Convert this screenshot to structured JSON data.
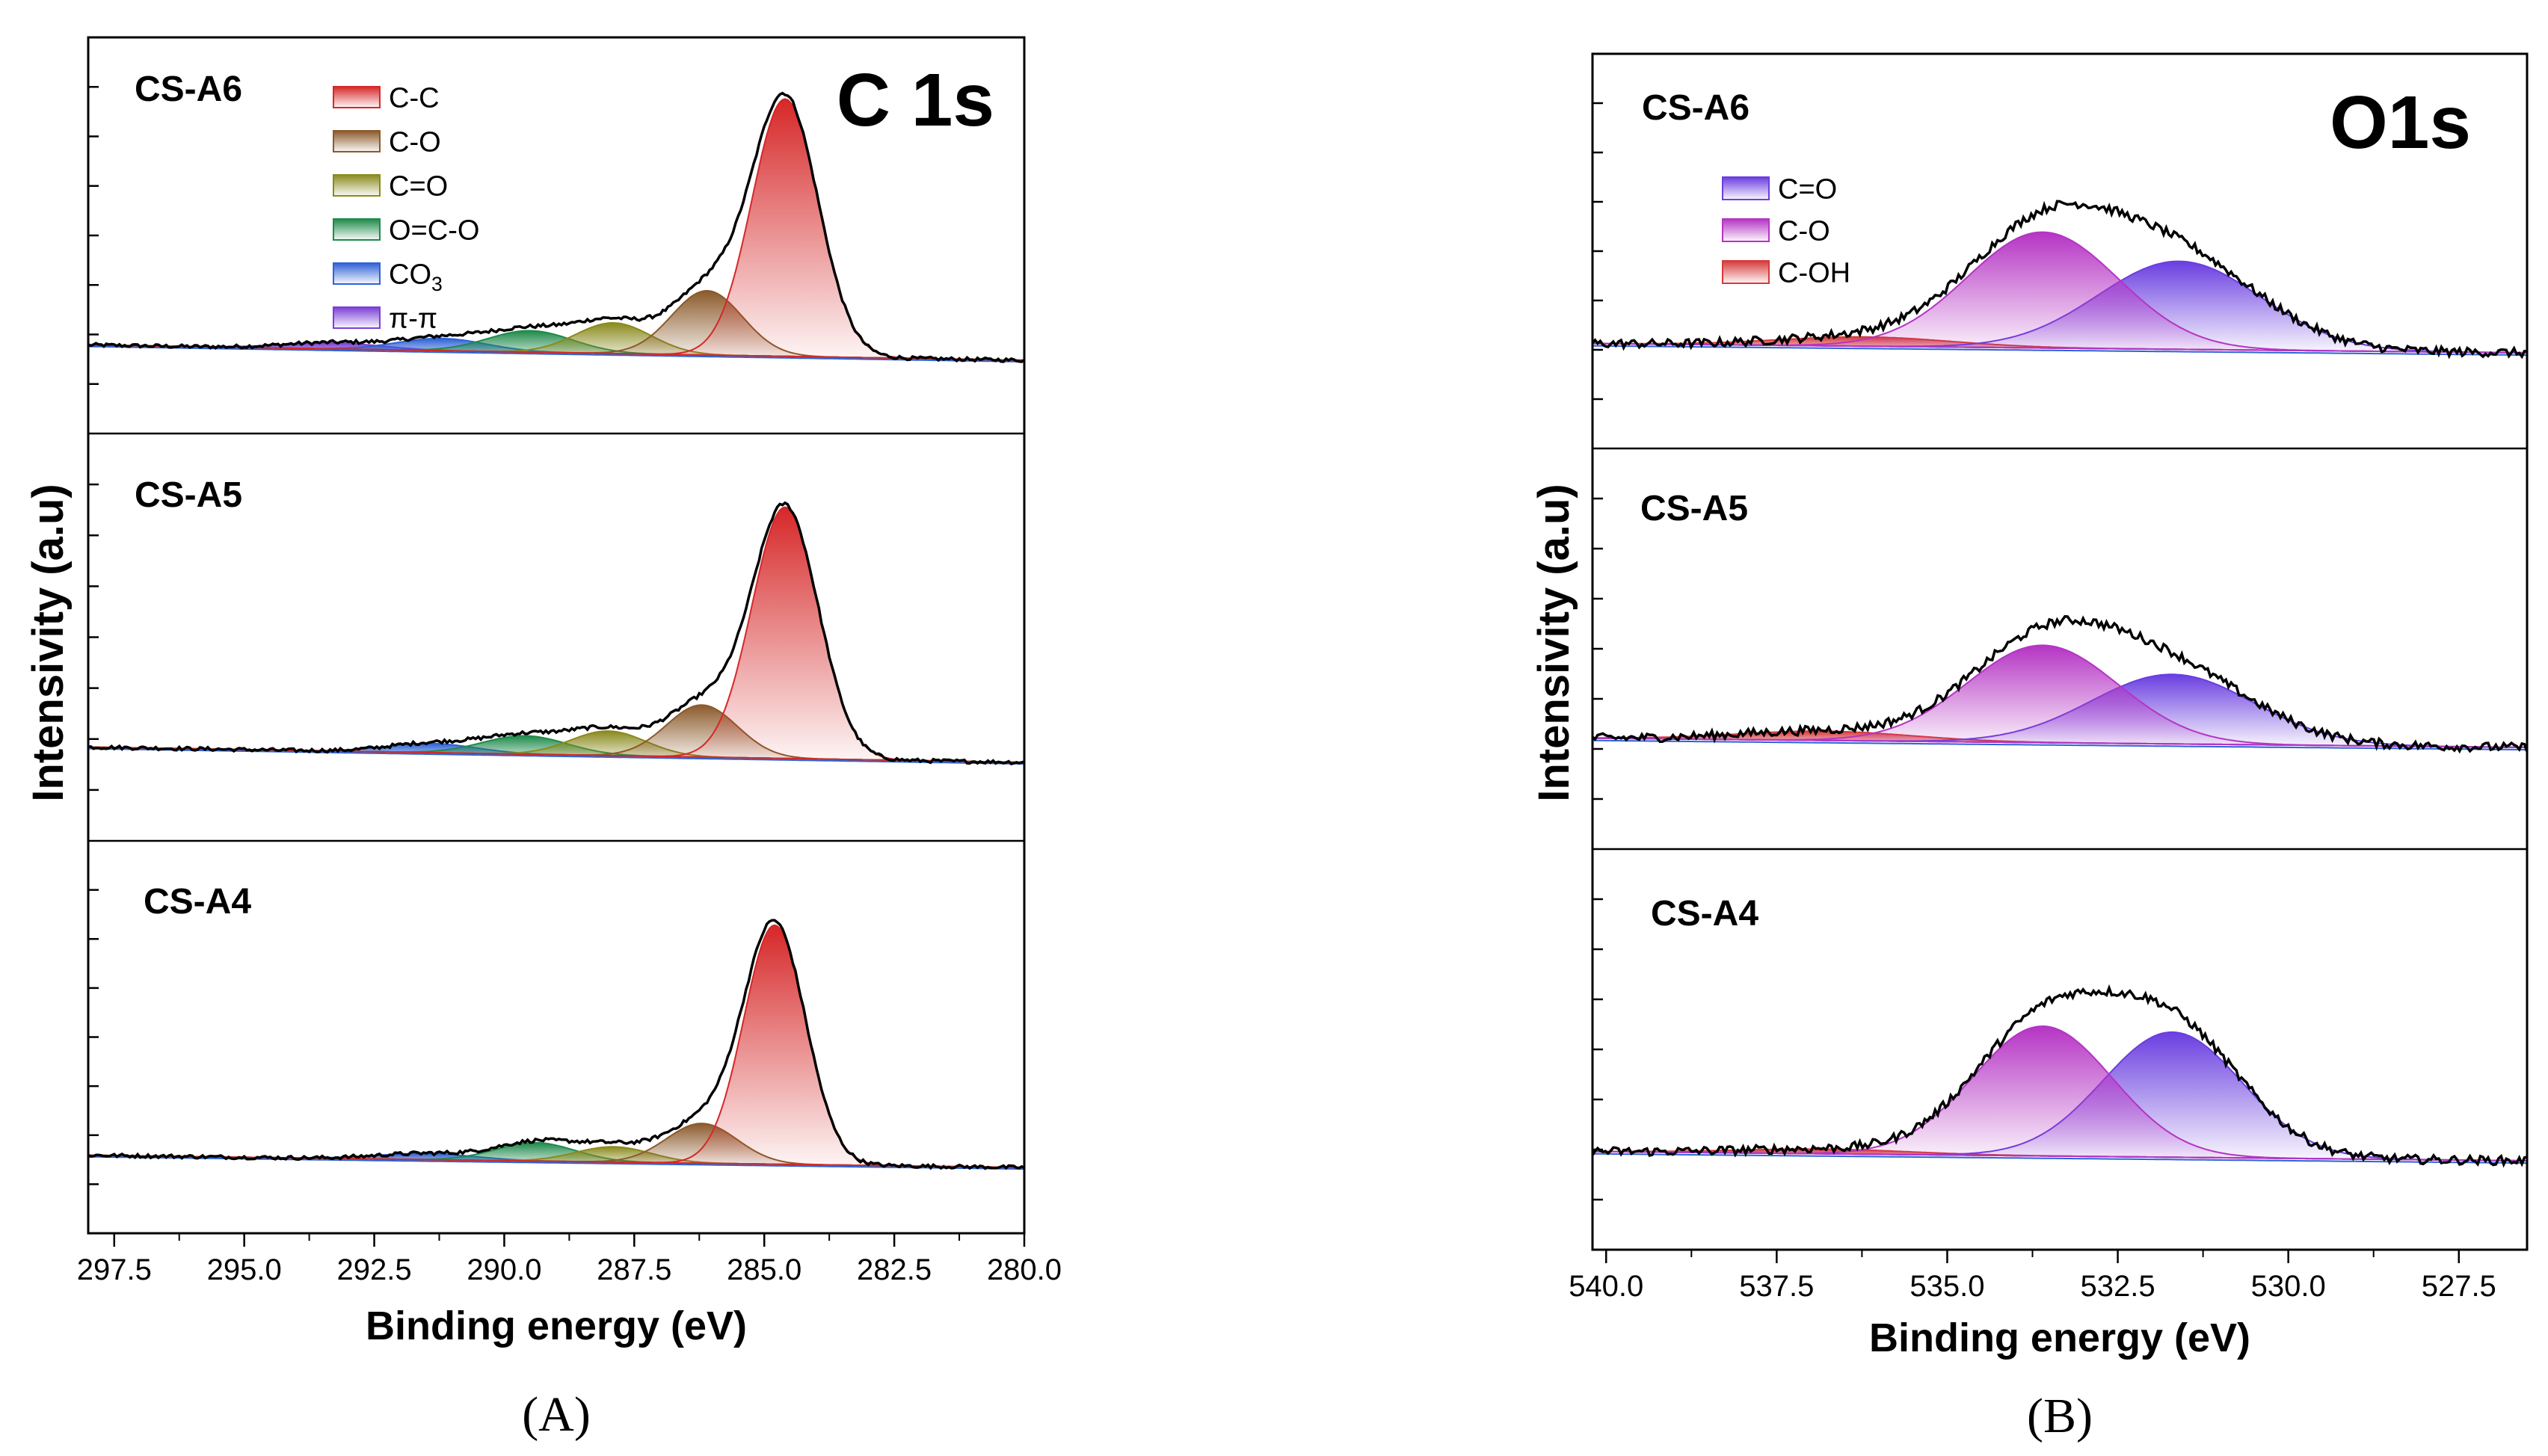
{
  "colors": {
    "c_c": "#d62728",
    "c_o": "#8b5a2b",
    "c_eq_o": "#8a8a1e",
    "o_c_o": "#1e8a4a",
    "co3": "#2f62d6",
    "pi_pi": "#7a3fd6",
    "o_ceqo": "#6a3ee0",
    "o_co": "#b534c4",
    "o_coh": "#d63a3a",
    "envelope": "#000000"
  },
  "chart_data": [
    {
      "type": "line",
      "id": "A",
      "panel_label": "(A)",
      "title": "C 1s",
      "xlabel": "Binding energy (eV)",
      "ylabel": "Intensivity (a.u)",
      "xlim": [
        298.0,
        280.0
      ],
      "x_reversed": true,
      "x_ticks": [
        "297.5",
        "295.0",
        "292.5",
        "290.0",
        "287.5",
        "285.0",
        "282.5",
        "280.0"
      ],
      "x_tick_values": [
        297.5,
        295.0,
        292.5,
        290.0,
        287.5,
        285.0,
        282.5,
        280.0
      ],
      "legend": [
        {
          "label": "C-C",
          "color_key": "c_c"
        },
        {
          "label": "C-O",
          "color_key": "c_o"
        },
        {
          "label": "C=O",
          "color_key": "c_eq_o"
        },
        {
          "label": "O=C-O",
          "color_key": "o_c_o"
        },
        {
          "label": "CO",
          "sub": "3",
          "color_key": "co3"
        },
        {
          "label": "π-π",
          "color_key": "pi_pi"
        }
      ],
      "subplots": [
        {
          "name": "CS-A6",
          "ylim": [
            0,
            1.0
          ],
          "baseline": [
            0.05,
            0.0
          ],
          "peaks": [
            {
              "component": "C-C",
              "color_key": "c_c",
              "center": 284.6,
              "height": 0.84,
              "fwhm": 1.5
            },
            {
              "component": "C-O",
              "color_key": "c_o",
              "center": 286.1,
              "height": 0.21,
              "fwhm": 1.6
            },
            {
              "component": "C=O",
              "color_key": "c_eq_o",
              "center": 287.9,
              "height": 0.1,
              "fwhm": 1.7
            },
            {
              "component": "O=C-O",
              "color_key": "o_c_o",
              "center": 289.5,
              "height": 0.07,
              "fwhm": 1.9
            },
            {
              "component": "CO3",
              "color_key": "co3",
              "center": 291.2,
              "height": 0.04,
              "fwhm": 2.0
            },
            {
              "component": "π-π",
              "color_key": "pi_pi",
              "center": 293.3,
              "height": 0.02,
              "fwhm": 2.2
            }
          ]
        },
        {
          "name": "CS-A5",
          "ylim": [
            0,
            1.0
          ],
          "baseline": [
            0.05,
            0.0
          ],
          "peaks": [
            {
              "component": "C-C",
              "color_key": "c_c",
              "center": 284.6,
              "height": 0.82,
              "fwhm": 1.5
            },
            {
              "component": "C-O",
              "color_key": "c_o",
              "center": 286.2,
              "height": 0.17,
              "fwhm": 1.6
            },
            {
              "component": "C=O",
              "color_key": "c_eq_o",
              "center": 288.0,
              "height": 0.08,
              "fwhm": 1.7
            },
            {
              "component": "O=C-O",
              "color_key": "o_c_o",
              "center": 289.6,
              "height": 0.06,
              "fwhm": 1.9
            },
            {
              "component": "CO3",
              "color_key": "co3",
              "center": 291.4,
              "height": 0.03,
              "fwhm": 2.0
            }
          ]
        },
        {
          "name": "CS-A4",
          "ylim": [
            0,
            1.0
          ],
          "baseline": [
            0.04,
            0.0
          ],
          "peaks": [
            {
              "component": "C-C",
              "color_key": "c_c",
              "center": 284.8,
              "height": 0.78,
              "fwhm": 1.4
            },
            {
              "component": "C-O",
              "color_key": "c_o",
              "center": 286.2,
              "height": 0.13,
              "fwhm": 1.6
            },
            {
              "component": "C=O",
              "color_key": "c_eq_o",
              "center": 287.9,
              "height": 0.05,
              "fwhm": 1.7
            },
            {
              "component": "O=C-O",
              "color_key": "o_c_o",
              "center": 289.4,
              "height": 0.06,
              "fwhm": 1.8
            },
            {
              "component": "CO3",
              "color_key": "co3",
              "center": 291.5,
              "height": 0.02,
              "fwhm": 2.2
            }
          ]
        }
      ]
    },
    {
      "type": "line",
      "id": "B",
      "panel_label": "(B)",
      "title": "O1s",
      "xlabel": "Binding energy (eV)",
      "ylabel": "Intensivity (a.u)",
      "xlim": [
        540.2,
        526.5
      ],
      "x_reversed": true,
      "x_ticks": [
        "540.0",
        "537.5",
        "535.0",
        "532.5",
        "530.0",
        "527.5"
      ],
      "x_tick_values": [
        540.0,
        537.5,
        535.0,
        532.5,
        530.0,
        527.5
      ],
      "legend": [
        {
          "label": "C=O",
          "color_key": "o_ceqo"
        },
        {
          "label": "C-O",
          "color_key": "o_co"
        },
        {
          "label": "C-OH",
          "color_key": "o_coh"
        }
      ],
      "subplots": [
        {
          "name": "CS-A6",
          "ylim": [
            0,
            1.0
          ],
          "baseline": [
            0.02,
            0.0
          ],
          "peaks": [
            {
              "component": "C-O",
              "color_key": "o_co",
              "center": 533.6,
              "height": 0.25,
              "fwhm": 2.6
            },
            {
              "component": "C=O",
              "color_key": "o_ceqo",
              "center": 531.6,
              "height": 0.19,
              "fwhm": 2.8
            },
            {
              "component": "C-OH",
              "color_key": "o_coh",
              "center": 536.2,
              "height": 0.02,
              "fwhm": 3.0
            }
          ]
        },
        {
          "name": "CS-A5",
          "ylim": [
            0,
            1.0
          ],
          "baseline": [
            0.02,
            0.0
          ],
          "peaks": [
            {
              "component": "C-O",
              "color_key": "o_co",
              "center": 533.6,
              "height": 0.21,
              "fwhm": 2.6
            },
            {
              "component": "C=O",
              "color_key": "o_ceqo",
              "center": 531.7,
              "height": 0.15,
              "fwhm": 2.8
            },
            {
              "component": "C-OH",
              "color_key": "o_coh",
              "center": 536.8,
              "height": 0.02,
              "fwhm": 3.0
            }
          ]
        },
        {
          "name": "CS-A4",
          "ylim": [
            0,
            1.0
          ],
          "baseline": [
            0.02,
            0.0
          ],
          "peaks": [
            {
              "component": "C-O",
              "color_key": "o_co",
              "center": 533.6,
              "height": 0.28,
              "fwhm": 2.4
            },
            {
              "component": "C=O",
              "color_key": "o_ceqo",
              "center": 531.7,
              "height": 0.27,
              "fwhm": 2.4
            },
            {
              "component": "C-OH",
              "color_key": "o_coh",
              "center": 536.8,
              "height": 0.01,
              "fwhm": 3.0
            }
          ]
        }
      ]
    }
  ]
}
